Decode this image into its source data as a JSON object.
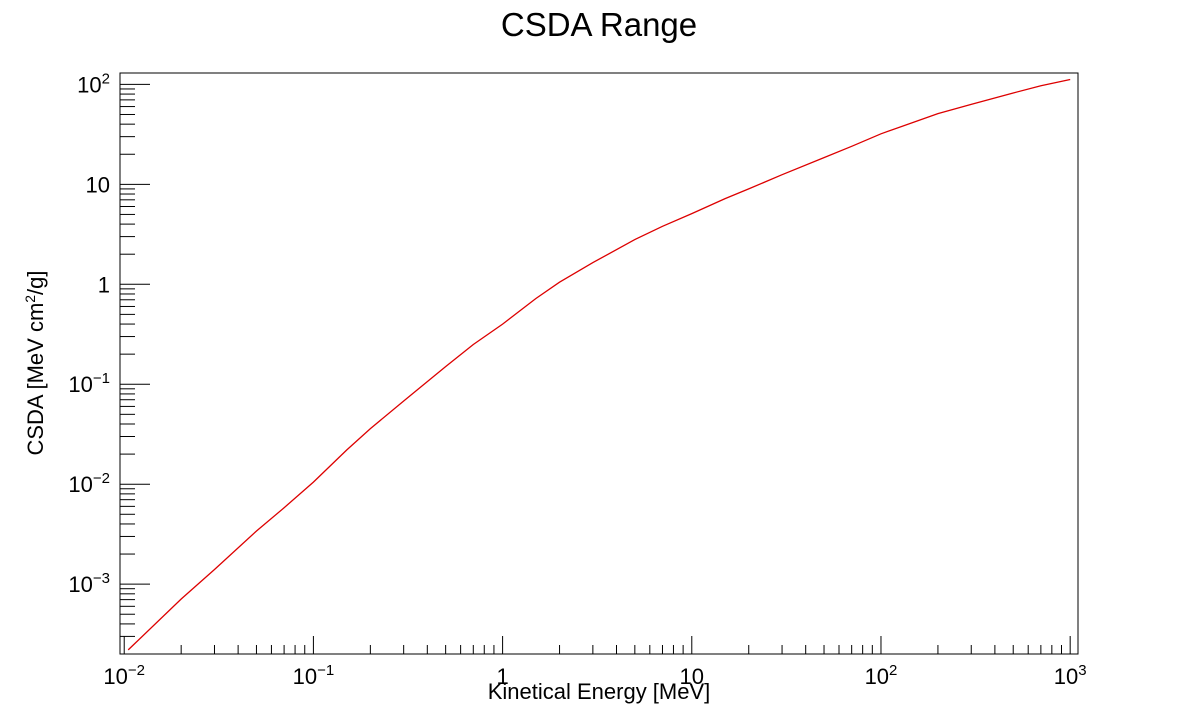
{
  "chart_data": {
    "type": "line",
    "title": "CSDA Range",
    "xlabel": "Kinetical Energy [MeV]",
    "ylabel": {
      "prefix": "CSDA [MeV cm",
      "sup": "2",
      "suffix": "/g]"
    },
    "xscale": "log",
    "yscale": "log",
    "xlim": [
      0.0095,
      1100
    ],
    "ylim": [
      0.0002,
      130
    ],
    "grid": false,
    "legend": "none",
    "line_color": "#dd0000",
    "x_ticks": [
      {
        "base": "10",
        "exp": "−2"
      },
      {
        "base": "10",
        "exp": "−1"
      },
      {
        "base": "1",
        "exp": ""
      },
      {
        "base": "10",
        "exp": ""
      },
      {
        "base": "10",
        "exp": "2"
      },
      {
        "base": "10",
        "exp": "3"
      }
    ],
    "y_ticks": [
      {
        "base": "10",
        "exp": "−3"
      },
      {
        "base": "10",
        "exp": "−2"
      },
      {
        "base": "10",
        "exp": "−1"
      },
      {
        "base": "1",
        "exp": ""
      },
      {
        "base": "10",
        "exp": ""
      },
      {
        "base": "10",
        "exp": "2"
      }
    ],
    "series": [
      {
        "x": [
          0.0105,
          0.02,
          0.03,
          0.05,
          0.07,
          0.1,
          0.15,
          0.2,
          0.3,
          0.5,
          0.7,
          1,
          1.5,
          2,
          3,
          5,
          7,
          10,
          15,
          20,
          30,
          50,
          70,
          100,
          150,
          200,
          300,
          500,
          700,
          1000
        ],
        "y": [
          0.00022,
          0.00071,
          0.0014,
          0.0034,
          0.0058,
          0.0105,
          0.022,
          0.036,
          0.068,
          0.15,
          0.25,
          0.4,
          0.72,
          1.05,
          1.65,
          2.8,
          3.8,
          5.1,
          7.2,
          9.0,
          12.5,
          18.5,
          24,
          32,
          42,
          51,
          63,
          82,
          97,
          112
        ]
      }
    ]
  }
}
